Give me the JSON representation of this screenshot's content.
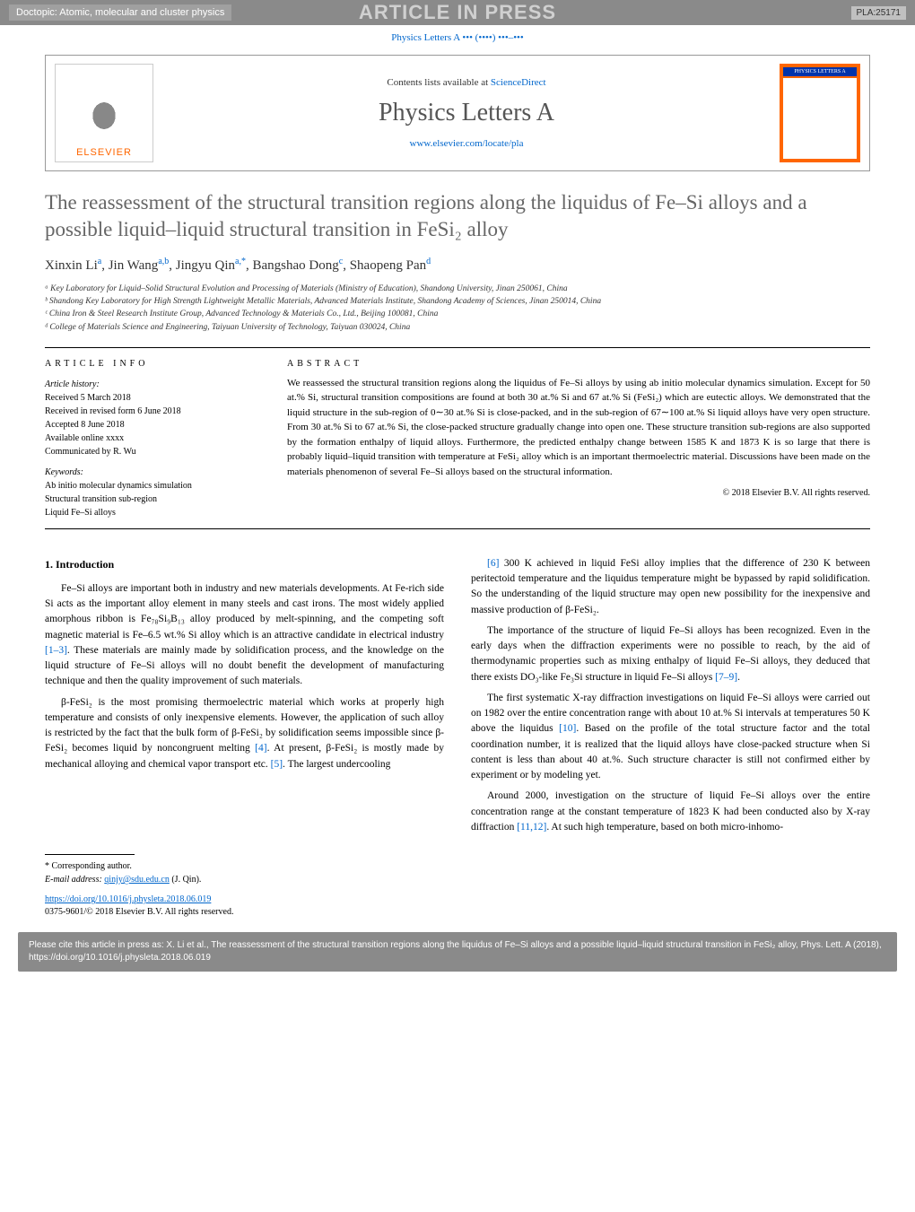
{
  "topbar": {
    "doctopic": "Doctopic: Atomic, molecular and cluster physics",
    "in_press": "ARTICLE IN PRESS",
    "code": "PLA:25171"
  },
  "journal_ref": "Physics Letters A ••• (••••) •••–•••",
  "header": {
    "elsevier": "ELSEVIER",
    "contents_prefix": "Contents lists available at ",
    "contents_link": "ScienceDirect",
    "journal_title": "Physics Letters A",
    "journal_url": "www.elsevier.com/locate/pla",
    "cover_label": "PHYSICS LETTERS A"
  },
  "title": "The reassessment of the structural transition regions along the liquidus of Fe–Si alloys and a possible liquid–liquid structural transition in FeSi₂ alloy",
  "authors_html": "Xinxin Li<sup>a</sup>, Jin Wang<sup>a,b</sup>, Jingyu Qin<sup>a,*</sup>, Bangshao Dong<sup>c</sup>, Shaopeng Pan<sup>d</sup>",
  "affiliations": [
    "ᵃ Key Laboratory for Liquid–Solid Structural Evolution and Processing of Materials (Ministry of Education), Shandong University, Jinan 250061, China",
    "ᵇ Shandong Key Laboratory for High Strength Lightweight Metallic Materials, Advanced Materials Institute, Shandong Academy of Sciences, Jinan 250014, China",
    "ᶜ China Iron & Steel Research Institute Group, Advanced Technology & Materials Co., Ltd., Beijing 100081, China",
    "ᵈ College of Materials Science and Engineering, Taiyuan University of Technology, Taiyuan 030024, China"
  ],
  "info": {
    "heading": "ARTICLE INFO",
    "history_label": "Article history:",
    "history": [
      "Received 5 March 2018",
      "Received in revised form 6 June 2018",
      "Accepted 8 June 2018",
      "Available online xxxx",
      "Communicated by R. Wu"
    ],
    "keywords_label": "Keywords:",
    "keywords": [
      "Ab initio molecular dynamics simulation",
      "Structural transition sub-region",
      "Liquid Fe–Si alloys"
    ]
  },
  "abstract": {
    "heading": "ABSTRACT",
    "text": "We reassessed the structural transition regions along the liquidus of Fe–Si alloys by using ab initio molecular dynamics simulation. Except for 50 at.% Si, structural transition compositions are found at both 30 at.% Si and 67 at.% Si (FeSi₂) which are eutectic alloys. We demonstrated that the liquid structure in the sub-region of 0∼30 at.% Si is close-packed, and in the sub-region of 67∼100 at.% Si liquid alloys have very open structure. From 30 at.% Si to 67 at.% Si, the close-packed structure gradually change into open one. These structure transition sub-regions are also supported by the formation enthalpy of liquid alloys. Furthermore, the predicted enthalpy change between 1585 K and 1873 K is so large that there is probably liquid–liquid transition with temperature at FeSi₂ alloy which is an important thermoelectric material. Discussions have been made on the materials phenomenon of several Fe–Si alloys based on the structural information.",
    "copyright": "© 2018 Elsevier B.V. All rights reserved."
  },
  "body": {
    "section_heading": "1. Introduction",
    "col1": [
      "Fe–Si alloys are important both in industry and new materials developments. At Fe-rich side Si acts as the important alloy element in many steels and cast irons. The most widely applied amorphous ribbon is Fe₇₈Si₉B₁₃ alloy produced by melt-spinning, and the competing soft magnetic material is Fe–6.5 wt.% Si alloy which is an attractive candidate in electrical industry [1–3]. These materials are mainly made by solidification process, and the knowledge on the liquid structure of Fe–Si alloys will no doubt benefit the development of manufacturing technique and then the quality improvement of such materials.",
      "β-FeSi₂ is the most promising thermoelectric material which works at properly high temperature and consists of only inexpensive elements. However, the application of such alloy is restricted by the fact that the bulk form of β-FeSi₂ by solidification seems impossible since β-FeSi₂ becomes liquid by noncongruent melting [4]. At present, β-FeSi₂ is mostly made by mechanical alloying and chemical vapor transport etc. [5]. The largest undercooling"
    ],
    "col2": [
      "[6] 300 K achieved in liquid FeSi alloy implies that the difference of 230 K between peritectoid temperature and the liquidus temperature might be bypassed by rapid solidification. So the understanding of the liquid structure may open new possibility for the inexpensive and massive production of β-FeSi₂.",
      "The importance of the structure of liquid Fe–Si alloys has been recognized. Even in the early days when the diffraction experiments were no possible to reach, by the aid of thermodynamic properties such as mixing enthalpy of liquid Fe–Si alloys, they deduced that there exists DO₃-like Fe₃Si structure in liquid Fe–Si alloys [7–9].",
      "The first systematic X-ray diffraction investigations on liquid Fe–Si alloys were carried out on 1982 over the entire concentration range with about 10 at.% Si intervals at temperatures 50 K above the liquidus [10]. Based on the profile of the total structure factor and the total coordination number, it is realized that the liquid alloys have close-packed structure when Si content is less than about 40 at.%. Such structure character is still not confirmed either by experiment or by modeling yet.",
      "Around 2000, investigation on the structure of liquid Fe–Si alloys over the entire concentration range at the constant temperature of 1823 K had been conducted also by X-ray diffraction [11,12]. At such high temperature, based on both micro-inhomo-"
    ]
  },
  "corresponding": {
    "star": "* Corresponding author.",
    "email_label": "E-mail address: ",
    "email": "qinjy@sdu.edu.cn",
    "email_person": " (J. Qin)."
  },
  "doi": {
    "link": "https://doi.org/10.1016/j.physleta.2018.06.019",
    "issn": "0375-9601/© 2018 Elsevier B.V. All rights reserved."
  },
  "cite": "Please cite this article in press as: X. Li et al., The reassessment of the structural transition regions along the liquidus of Fe–Si alloys and a possible liquid–liquid structural transition in FeSi₂ alloy, Phys. Lett. A (2018), https://doi.org/10.1016/j.physleta.2018.06.019",
  "colors": {
    "link": "#0066cc",
    "topbar_bg": "#8a8a8a",
    "elsevier_orange": "#ff6600",
    "title_gray": "#666666"
  }
}
